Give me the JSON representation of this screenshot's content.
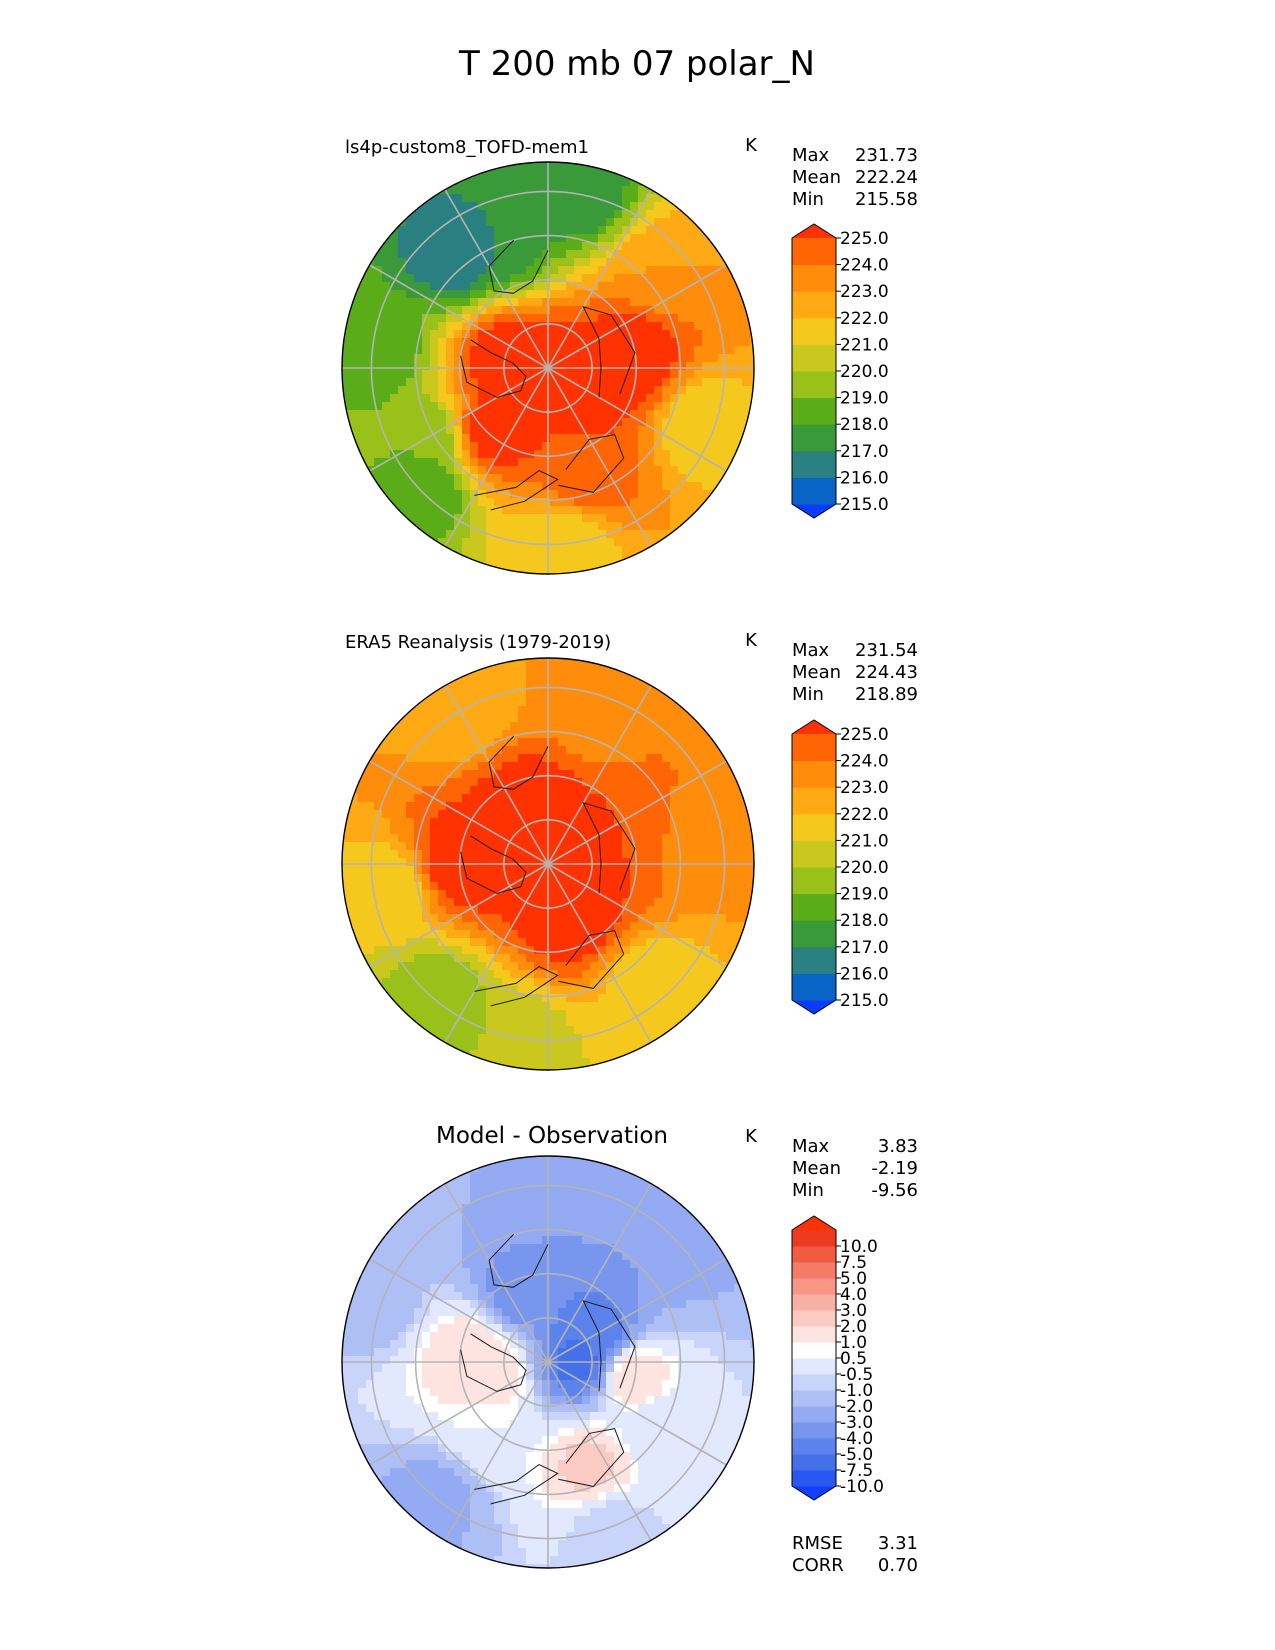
{
  "title": "T 200 mb 07 polar_N",
  "colors": {
    "abs": [
      "#0a3cff",
      "#0a64c8",
      "#2a8080",
      "#3a9a3a",
      "#5aac18",
      "#9ac01a",
      "#cac81e",
      "#f5c81e",
      "#ffaa14",
      "#ff8c0a",
      "#ff6405",
      "#ff3200"
    ],
    "diff": [
      "#1040ff",
      "#2858f0",
      "#4470ea",
      "#5c82ec",
      "#7896ee",
      "#94aaf2",
      "#aebff6",
      "#c8d4fa",
      "#e2e8fd",
      "#ffffff",
      "#fde4e0",
      "#fbcac2",
      "#f9b0a4",
      "#f79686",
      "#f57a68",
      "#f25a44",
      "#ef3a22",
      "#ff3200"
    ]
  },
  "chart_data": [
    {
      "type": "polar-contour-map",
      "label": "ls4p-custom8_TOFD-mem1",
      "units": "K",
      "stats": [
        {
          "label": "Max",
          "value": "231.73"
        },
        {
          "label": "Mean",
          "value": "222.24"
        },
        {
          "label": "Min",
          "value": "215.58"
        }
      ],
      "colorbar_ticks": [
        "225.0",
        "224.0",
        "223.0",
        "222.0",
        "221.0",
        "220.0",
        "219.0",
        "218.0",
        "217.0",
        "216.0",
        "215.0"
      ],
      "field": [
        {
          "lat": 90,
          "lon": 0,
          "v": 226
        },
        {
          "lat": 75,
          "lon": 255,
          "v": 226
        },
        {
          "lat": 70,
          "lon": 80,
          "v": 226
        },
        {
          "lat": 60,
          "lon": 100,
          "v": 226
        },
        {
          "lat": 62,
          "lon": 320,
          "v": 226
        },
        {
          "lat": 52,
          "lon": 20,
          "v": 225
        },
        {
          "lat": 45,
          "lon": 200,
          "v": 217
        },
        {
          "lat": 40,
          "lon": 220,
          "v": 216
        },
        {
          "lat": 30,
          "lon": 170,
          "v": 217
        },
        {
          "lat": 32,
          "lon": 265,
          "v": 218
        },
        {
          "lat": 42,
          "lon": 300,
          "v": 219
        },
        {
          "lat": 30,
          "lon": 315,
          "v": 218
        },
        {
          "lat": 30,
          "lon": 5,
          "v": 221
        },
        {
          "lat": 35,
          "lon": 70,
          "v": 221
        },
        {
          "lat": 40,
          "lon": 130,
          "v": 223
        }
      ]
    },
    {
      "type": "polar-contour-map",
      "label": "ERA5 Reanalysis (1979-2019)",
      "units": "K",
      "stats": [
        {
          "label": "Max",
          "value": "231.54"
        },
        {
          "label": "Mean",
          "value": "224.43"
        },
        {
          "label": "Min",
          "value": "218.89"
        }
      ],
      "colorbar_ticks": [
        "225.0",
        "224.0",
        "223.0",
        "222.0",
        "221.0",
        "220.0",
        "219.0",
        "218.0",
        "217.0",
        "216.0",
        "215.0"
      ],
      "field": [
        {
          "lat": 90,
          "lon": 0,
          "v": 227
        },
        {
          "lat": 70,
          "lon": 200,
          "v": 226
        },
        {
          "lat": 70,
          "lon": 20,
          "v": 226
        },
        {
          "lat": 60,
          "lon": 270,
          "v": 226
        },
        {
          "lat": 60,
          "lon": 120,
          "v": 225
        },
        {
          "lat": 35,
          "lon": 40,
          "v": 221
        },
        {
          "lat": 30,
          "lon": 350,
          "v": 220
        },
        {
          "lat": 32,
          "lon": 320,
          "v": 219
        },
        {
          "lat": 35,
          "lon": 280,
          "v": 221
        },
        {
          "lat": 35,
          "lon": 100,
          "v": 223
        },
        {
          "lat": 35,
          "lon": 160,
          "v": 223
        },
        {
          "lat": 30,
          "lon": 210,
          "v": 222
        }
      ]
    },
    {
      "type": "polar-contour-map",
      "label": "Model - Observation",
      "units": "K",
      "stats": [
        {
          "label": "Max",
          "value": "3.83"
        },
        {
          "label": "Mean",
          "value": "-2.19"
        },
        {
          "label": "Min",
          "value": "-9.56"
        }
      ],
      "colorbar_ticks": [
        "10.0",
        "7.5",
        "5.0",
        "4.0",
        "3.0",
        "2.0",
        "1.0",
        "0.5",
        "-0.5",
        "-1.0",
        "-2.0",
        "-3.0",
        "-4.0",
        "-5.0",
        "-7.5",
        "-10.0"
      ],
      "metrics": [
        {
          "label": "RMSE",
          "value": "3.31"
        },
        {
          "label": "CORR",
          "value": "0.70"
        }
      ],
      "field": [
        {
          "lat": 80,
          "lon": 90,
          "v": -5.5
        },
        {
          "lat": 72,
          "lon": 120,
          "v": -5
        },
        {
          "lat": 65,
          "lon": 200,
          "v": -4
        },
        {
          "lat": 70,
          "lon": 280,
          "v": 2
        },
        {
          "lat": 62,
          "lon": 265,
          "v": 2
        },
        {
          "lat": 52,
          "lon": 22,
          "v": 2.5
        },
        {
          "lat": 45,
          "lon": 60,
          "v": -0.5
        },
        {
          "lat": 60,
          "lon": 80,
          "v": 2
        },
        {
          "lat": 60,
          "lon": 320,
          "v": 0.5
        },
        {
          "lat": 35,
          "lon": 140,
          "v": -3
        },
        {
          "lat": 30,
          "lon": 200,
          "v": -2
        },
        {
          "lat": 30,
          "lon": 250,
          "v": -1.5
        },
        {
          "lat": 30,
          "lon": 320,
          "v": -2.5
        },
        {
          "lat": 30,
          "lon": 20,
          "v": -1
        }
      ]
    }
  ]
}
